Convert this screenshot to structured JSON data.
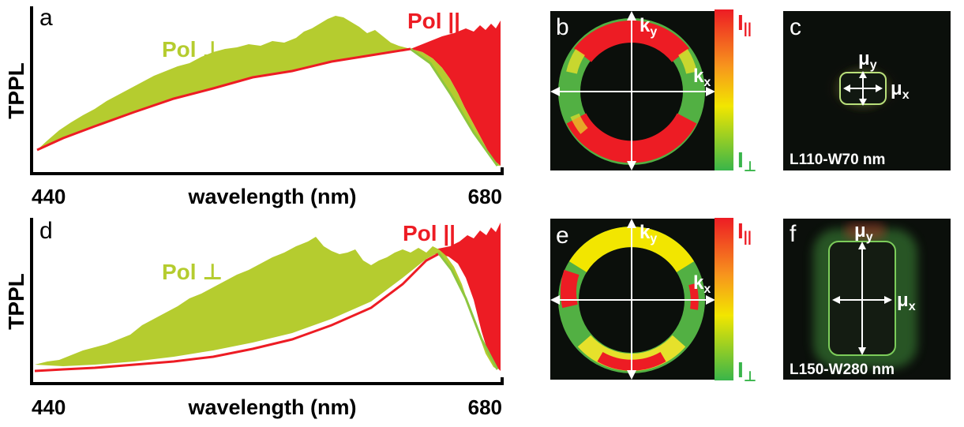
{
  "figure": {
    "colors": {
      "perp": "#b5cc2f",
      "perp_edge": "#8dc63f",
      "par": "#ed1c24",
      "axis": "#000000",
      "bg_dark": "#0b0f0b"
    },
    "spectra": [
      {
        "panel_label": "a",
        "ylabel": "TPPL",
        "xlabel": "wavelength (nm)",
        "x_ticks": [
          "440",
          "680"
        ],
        "legend_perp": "Pol ⊥",
        "legend_par": "Pol ||"
      },
      {
        "panel_label": "d",
        "ylabel": "TPPL",
        "xlabel": "wavelength (nm)",
        "x_ticks": [
          "440",
          "680"
        ],
        "legend_perp": "Pol ⊥",
        "legend_par": "Pol ||"
      }
    ],
    "fourier": [
      {
        "panel_label": "b",
        "kx_base": "k",
        "kx_sub": "x",
        "ky_base": "k",
        "ky_sub": "y",
        "cbar_top_base": "I",
        "cbar_top_sub": "||",
        "cbar_bottom_base": "I",
        "cbar_bottom_sub": "⊥"
      },
      {
        "panel_label": "e",
        "kx_base": "k",
        "kx_sub": "x",
        "ky_base": "k",
        "ky_sub": "y",
        "cbar_top_base": "I",
        "cbar_top_sub": "||",
        "cbar_bottom_base": "I",
        "cbar_bottom_sub": "⊥"
      }
    ],
    "nearfield": [
      {
        "panel_label": "c",
        "mux_base": "μ",
        "mux_sub": "x",
        "muy_base": "μ",
        "muy_sub": "y",
        "size_label": "L110-W70 nm"
      },
      {
        "panel_label": "f",
        "mux_base": "μ",
        "mux_sub": "x",
        "muy_base": "μ",
        "muy_sub": "y",
        "size_label": "L150-W280 nm"
      }
    ]
  }
}
